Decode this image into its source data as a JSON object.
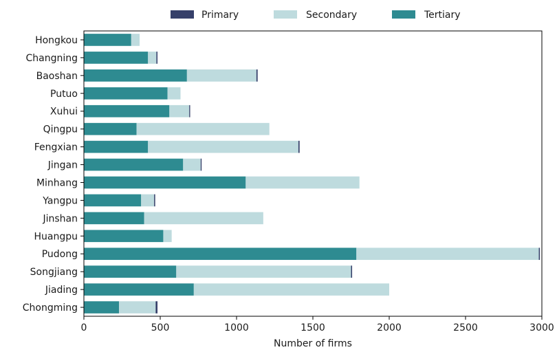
{
  "chart_data": {
    "type": "bar",
    "orientation": "horizontal",
    "stacked": true,
    "categories": [
      "Hongkou",
      "Changning",
      "Baoshan",
      "Putuo",
      "Xuhui",
      "Qingpu",
      "Fengxian",
      "Jingan",
      "Minhang",
      "Yangpu",
      "Jinshan",
      "Huangpu",
      "Pudong",
      "Songjiang",
      "Jiading",
      "Chongming"
    ],
    "series": [
      {
        "name": "Tertiary",
        "color": "#2e8b91",
        "values": [
          310,
          420,
          675,
          548,
          560,
          345,
          420,
          650,
          1060,
          375,
          395,
          520,
          1785,
          605,
          720,
          230
        ]
      },
      {
        "name": "Secondary",
        "color": "#bedbde",
        "values": [
          55,
          55,
          455,
          85,
          130,
          870,
          985,
          115,
          745,
          85,
          780,
          55,
          1195,
          1145,
          1280,
          240
        ]
      },
      {
        "name": "Primary",
        "color": "#36406a",
        "values": [
          0,
          7,
          8,
          0,
          6,
          0,
          8,
          6,
          0,
          7,
          0,
          0,
          7,
          7,
          0,
          12
        ]
      }
    ],
    "legend": [
      "Primary",
      "Secondary",
      "Tertiary"
    ],
    "legend_position": "top-center",
    "xlabel": "Number of firms",
    "ylabel": "",
    "xlim": [
      0,
      3000
    ],
    "xticks": [
      "0",
      "500",
      "1000",
      "1500",
      "2000",
      "2500",
      "3000"
    ],
    "grid": false
  }
}
